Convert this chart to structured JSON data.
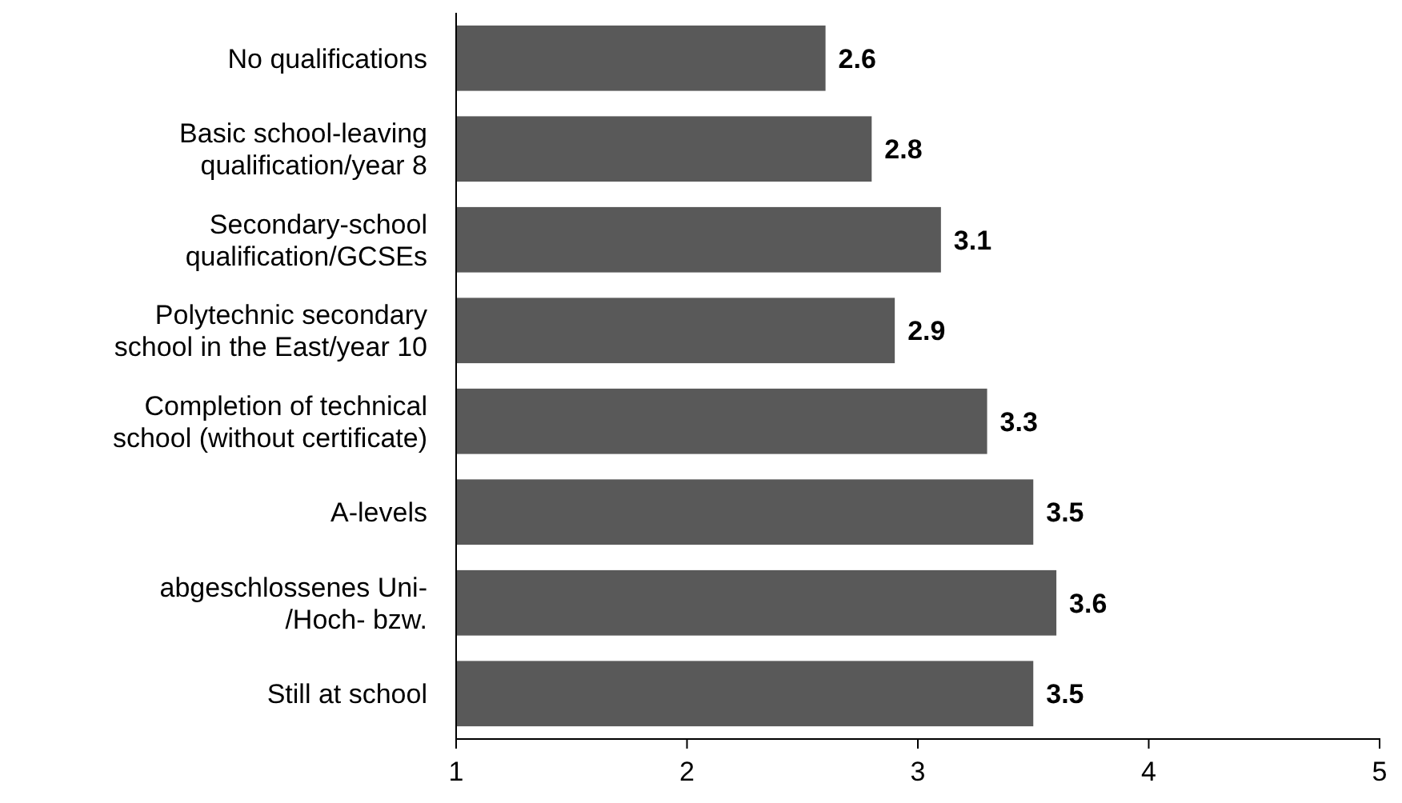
{
  "chart_data": {
    "type": "bar",
    "orientation": "horizontal",
    "categories": [
      "No qualifications",
      "Basic school-leaving\nqualification/year 8",
      "Secondary-school\nqualification/GCSEs",
      "Polytechnic secondary\nschool in the East/year 10",
      "Completion of technical\nschool (without certificate)",
      "A-levels",
      "abgeschlossenes Uni-\n/Hoch- bzw.",
      "Still at school"
    ],
    "values": [
      2.6,
      2.8,
      3.1,
      2.9,
      3.3,
      3.5,
      3.6,
      3.5
    ],
    "color": "#595959",
    "xlim": [
      1,
      5
    ],
    "xticks": [
      1,
      2,
      3,
      4,
      5
    ],
    "data_labels": true
  }
}
